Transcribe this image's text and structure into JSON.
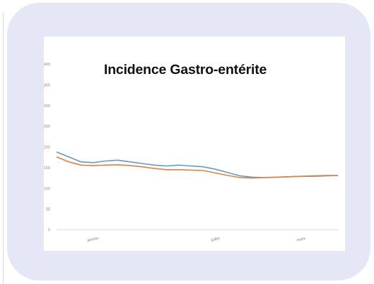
{
  "chart_data": {
    "type": "line",
    "title": "Incidence Gastro-entérite",
    "xlabel": "",
    "ylabel": "",
    "ylim": [
      0,
      400
    ],
    "y_ticks": [
      0,
      50,
      100,
      150,
      200,
      250,
      300,
      350,
      400
    ],
    "x_tick_labels": [
      "janvier",
      "juillet",
      "mars"
    ],
    "x_tick_index": [
      3,
      13,
      20
    ],
    "grid": false,
    "series": [
      {
        "color": "#5b9bd5",
        "values": [
          188,
          176,
          164,
          162,
          166,
          168,
          164,
          160,
          156,
          154,
          156,
          154,
          152,
          146,
          138,
          130,
          127,
          126,
          127,
          128,
          129,
          129,
          130,
          131
        ]
      },
      {
        "color": "#ed7d31",
        "values": [
          176,
          164,
          156,
          155,
          156,
          157,
          155,
          152,
          148,
          145,
          145,
          144,
          143,
          137,
          131,
          126,
          125,
          126,
          127,
          128,
          129,
          130,
          131,
          131
        ]
      }
    ]
  }
}
